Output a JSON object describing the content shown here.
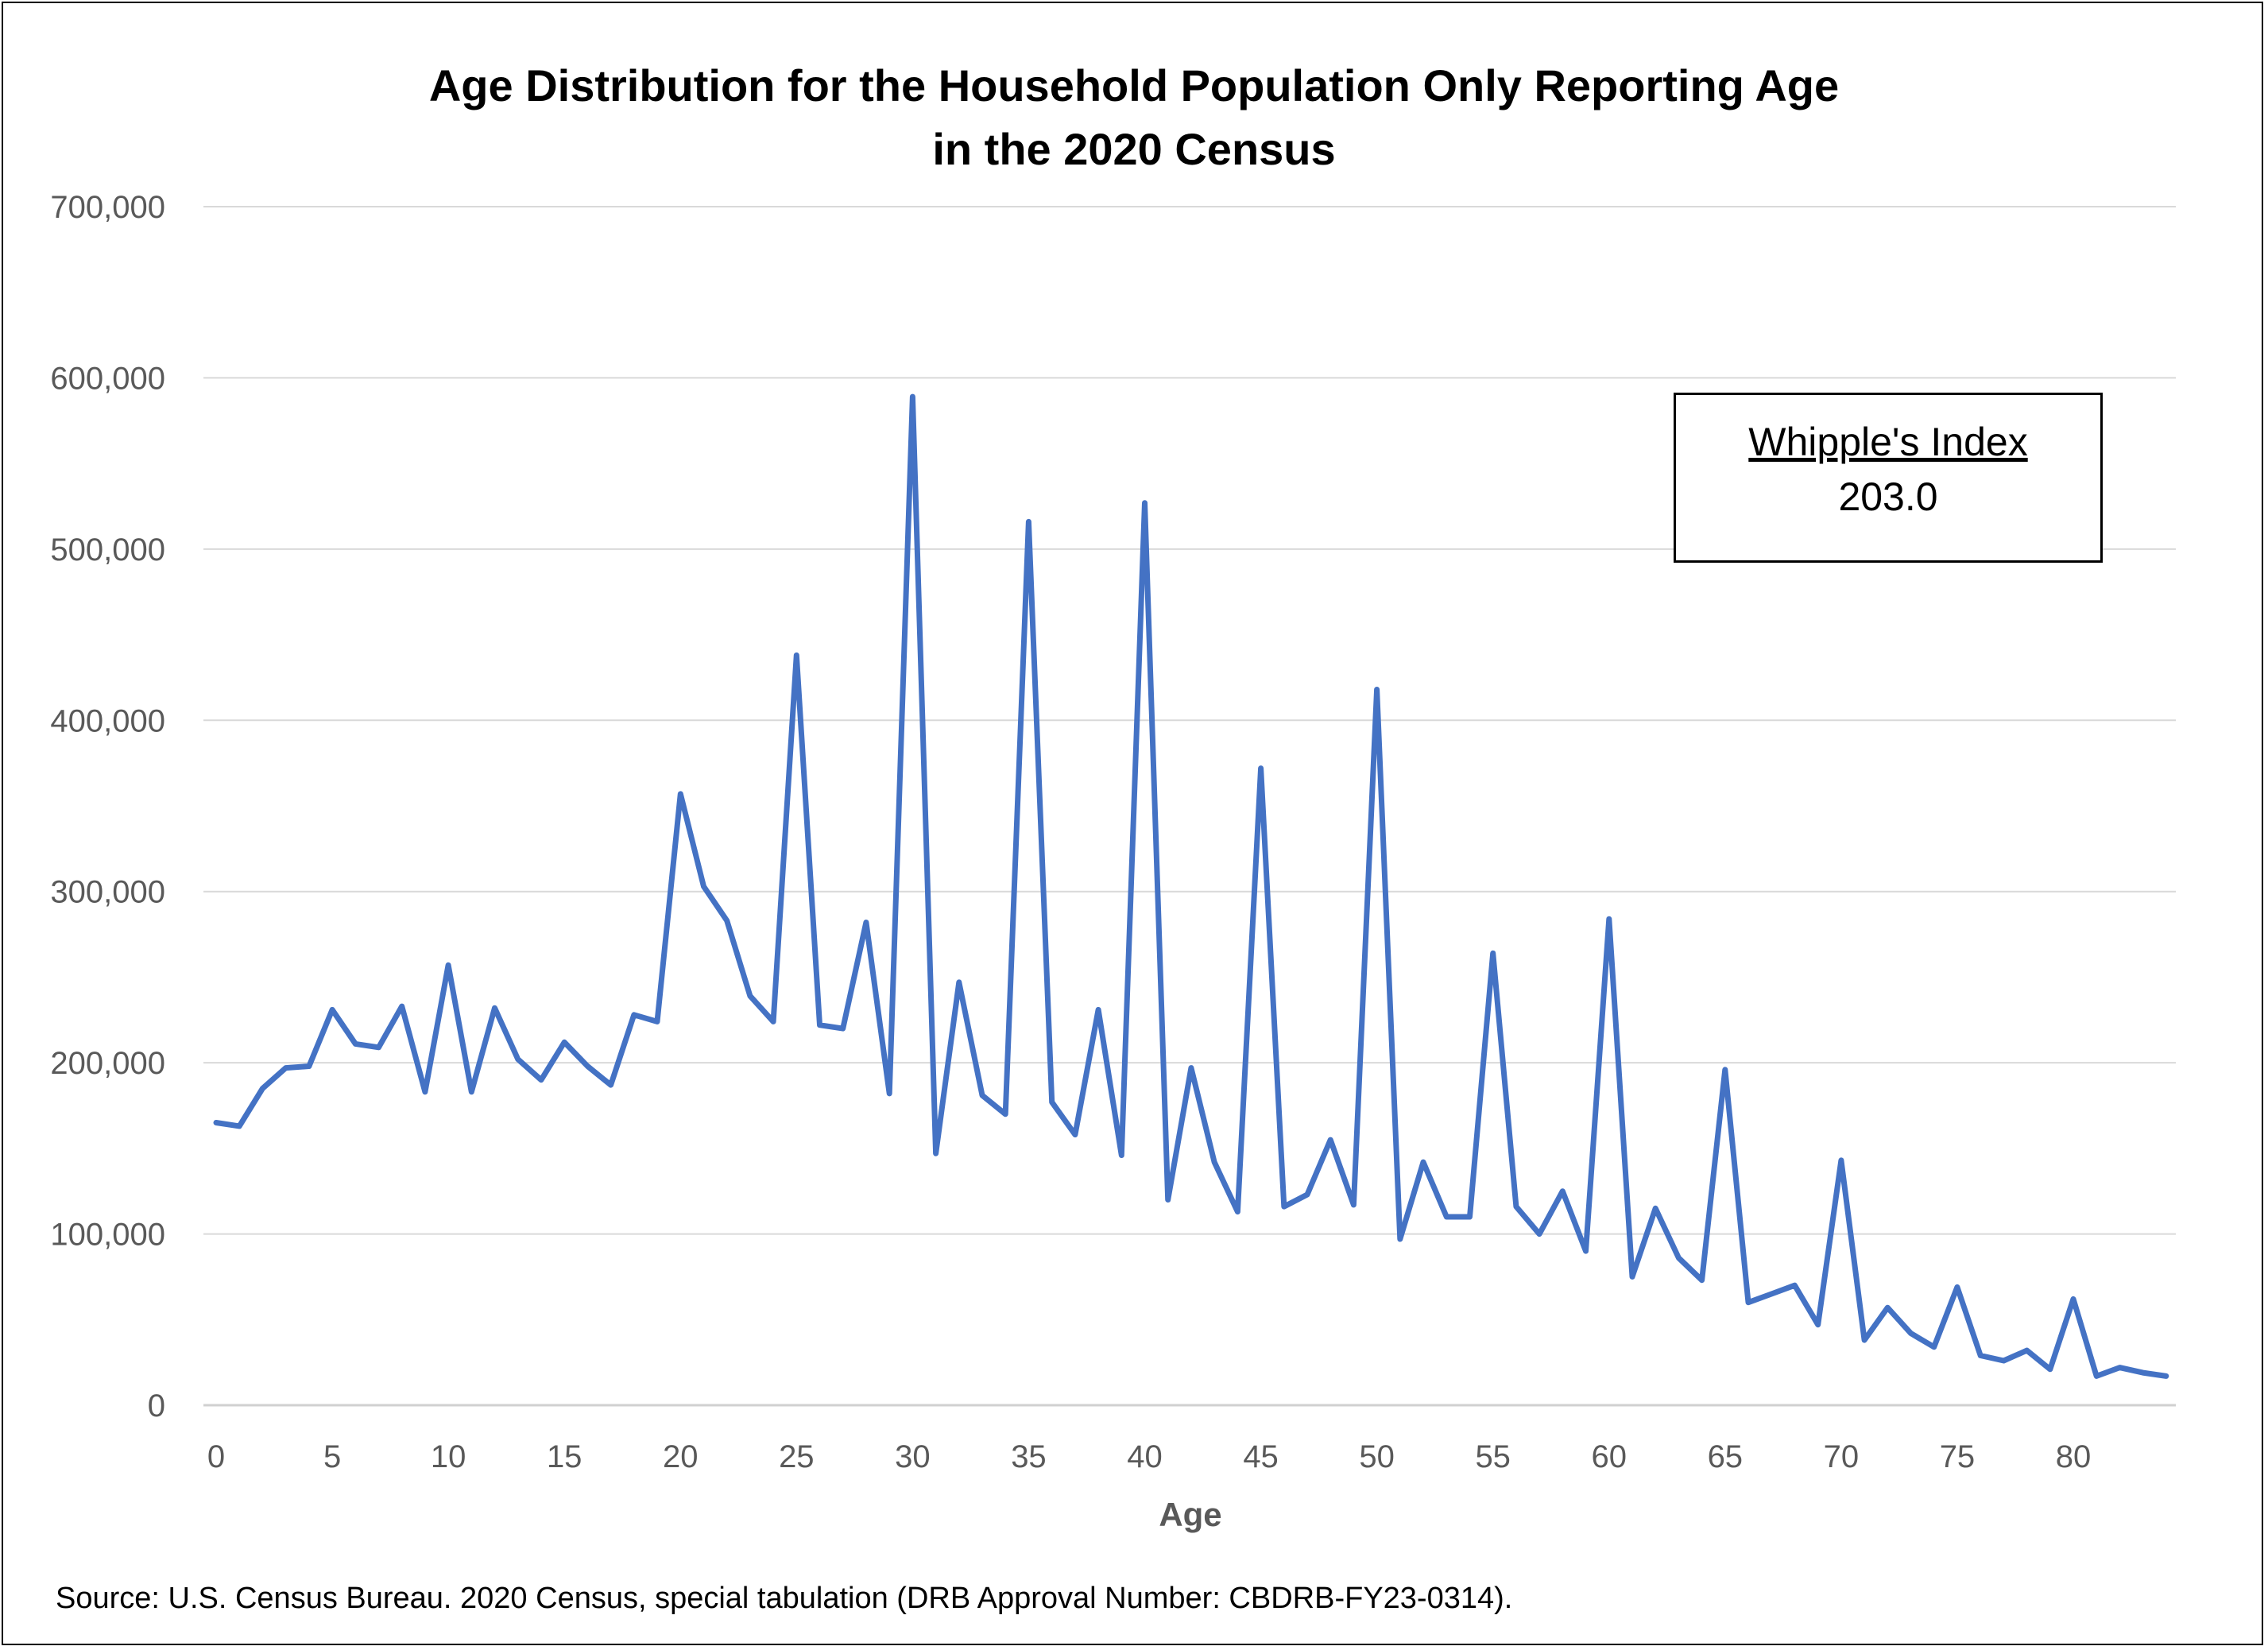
{
  "chart_data": {
    "type": "line",
    "title_line1": "Age Distribution for the Household Population Only Reporting Age",
    "title_line2": "in the 2020 Census",
    "xlabel": "Age",
    "ylabel": "",
    "ylim": [
      0,
      700000
    ],
    "yticks": [
      0,
      100000,
      200000,
      300000,
      400000,
      500000,
      600000,
      700000
    ],
    "ytick_labels": [
      "0",
      "100,000",
      "200,000",
      "300,000",
      "400,000",
      "500,000",
      "600,000",
      "700,000"
    ],
    "xticks": [
      0,
      5,
      10,
      15,
      20,
      25,
      30,
      35,
      40,
      45,
      50,
      55,
      60,
      65,
      70,
      75,
      80
    ],
    "xtick_labels": [
      "0",
      "5",
      "10",
      "15",
      "20",
      "25",
      "30",
      "35",
      "40",
      "45",
      "50",
      "55",
      "60",
      "65",
      "70",
      "75",
      "80"
    ],
    "xlim": [
      0,
      84
    ],
    "grid": true,
    "series": [
      {
        "color": "#4472C4",
        "x": [
          0,
          1,
          2,
          3,
          4,
          5,
          6,
          7,
          8,
          9,
          10,
          11,
          12,
          13,
          14,
          15,
          16,
          17,
          18,
          19,
          20,
          21,
          22,
          23,
          24,
          25,
          26,
          27,
          28,
          29,
          30,
          31,
          32,
          33,
          34,
          35,
          36,
          37,
          38,
          39,
          40,
          41,
          42,
          43,
          44,
          45,
          46,
          47,
          48,
          49,
          50,
          51,
          52,
          53,
          54,
          55,
          56,
          57,
          58,
          59,
          60,
          61,
          62,
          63,
          64,
          65,
          66,
          67,
          68,
          69,
          70,
          71,
          72,
          73,
          74,
          75,
          76,
          77,
          78,
          79,
          80,
          81,
          82,
          83,
          84
        ],
        "values": [
          165000,
          163000,
          185000,
          197000,
          198000,
          231000,
          211000,
          209000,
          233000,
          183000,
          257000,
          183000,
          232000,
          202000,
          190000,
          212000,
          198000,
          187000,
          228000,
          224000,
          357000,
          303000,
          283000,
          239000,
          224000,
          438000,
          222000,
          220000,
          282000,
          182000,
          589000,
          147000,
          247000,
          181000,
          170000,
          516000,
          177000,
          158000,
          231000,
          146000,
          527000,
          120000,
          197000,
          142000,
          113000,
          372000,
          116000,
          123000,
          155000,
          117000,
          418000,
          97000,
          142000,
          110000,
          110000,
          264000,
          116000,
          100000,
          125000,
          90000,
          284000,
          75000,
          115000,
          86000,
          73000,
          196000,
          60000,
          65000,
          70000,
          47000,
          143000,
          38000,
          57000,
          42000,
          34000,
          69000,
          29000,
          26000,
          32000,
          21000,
          62000,
          17000,
          22000,
          19000,
          17000
        ]
      }
    ]
  },
  "annotation": {
    "label": "Whipple's Index",
    "value": "203.0"
  },
  "source": "Source: U.S. Census Bureau. 2020 Census, special tabulation (DRB Approval Number: CBDRB-FY23-0314)."
}
